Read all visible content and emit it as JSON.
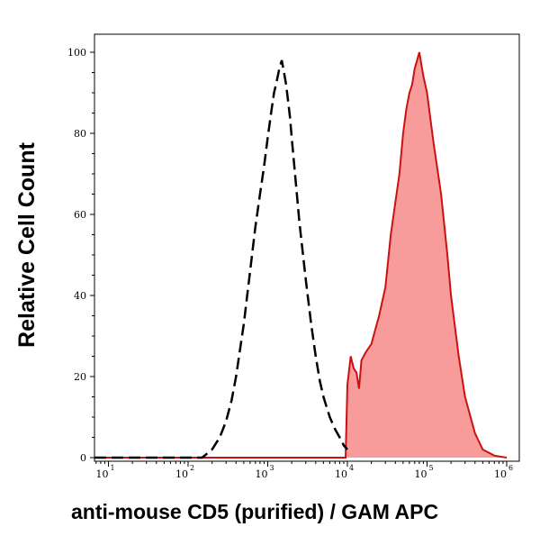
{
  "chart_data": {
    "type": "area",
    "title": "",
    "xlabel": "anti-mouse CD5 (purified) / GAM APC",
    "ylabel": "Relative Cell Count",
    "x_scale": "log",
    "xlim": [
      1,
      1000000
    ],
    "ylim": [
      0,
      105
    ],
    "x_ticks": [
      {
        "base": "10",
        "exp": "1",
        "value": 10
      },
      {
        "base": "10",
        "exp": "2",
        "value": 100
      },
      {
        "base": "10",
        "exp": "3",
        "value": 1000
      },
      {
        "base": "10",
        "exp": "4",
        "value": 10000
      },
      {
        "base": "10",
        "exp": "5",
        "value": 100000
      },
      {
        "base": "10",
        "exp": "6",
        "value": 1000000
      }
    ],
    "y_ticks": [
      0,
      20,
      40,
      60,
      80,
      100
    ],
    "grid": false,
    "legend": "none",
    "series": [
      {
        "style": "dashed-black-outline",
        "color": "#000000",
        "x": [
          1,
          150,
          200,
          250,
          300,
          350,
          400,
          500,
          600,
          700,
          800,
          900,
          1000,
          1100,
          1200,
          1300,
          1400,
          1500,
          1600,
          1700,
          1800,
          1900,
          2000,
          2200,
          2500,
          3000,
          3500,
          4000,
          4500,
          5000,
          6000,
          7000,
          8000,
          9000,
          10000
        ],
        "y": [
          0,
          0,
          2,
          5,
          9,
          14,
          20,
          33,
          46,
          57,
          65,
          72,
          79,
          85,
          90,
          93,
          96,
          98,
          95,
          92,
          88,
          84,
          79,
          70,
          58,
          44,
          33,
          25,
          19,
          15,
          10,
          7,
          5,
          3,
          2
        ]
      },
      {
        "style": "filled-red",
        "color": "#cc1111",
        "fill": "#f79b9b",
        "x": [
          1,
          9500,
          10000,
          11000,
          12000,
          13000,
          14000,
          15000,
          17000,
          20000,
          25000,
          30000,
          35000,
          40000,
          45000,
          50000,
          55000,
          60000,
          65000,
          70000,
          75000,
          80000,
          90000,
          100000,
          120000,
          150000,
          180000,
          200000,
          250000,
          300000,
          400000,
          500000,
          700000,
          1000000
        ],
        "y": [
          0,
          0,
          18,
          25,
          22,
          21,
          17,
          24,
          26,
          28,
          35,
          42,
          55,
          63,
          70,
          80,
          86,
          90,
          92,
          96,
          98,
          100,
          94,
          90,
          78,
          65,
          50,
          40,
          25,
          15,
          6,
          2,
          0.5,
          0
        ]
      }
    ]
  }
}
